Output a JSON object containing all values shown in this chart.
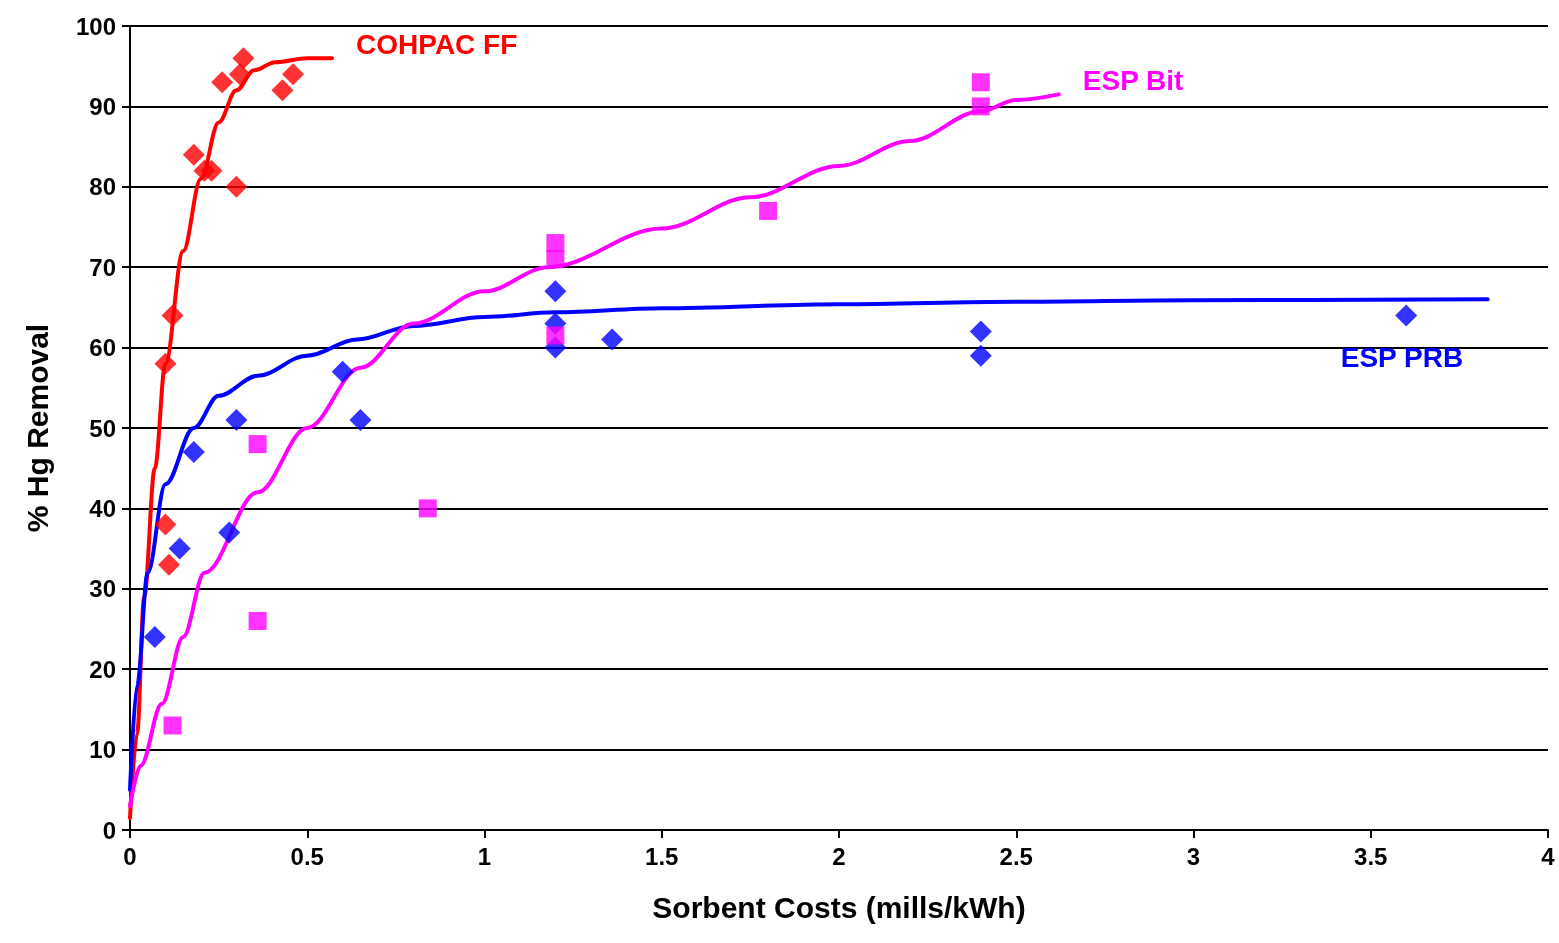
{
  "chart_data": {
    "type": "scatter",
    "xlabel": "Sorbent Costs (mills/kWh)",
    "ylabel": "% Hg Removal",
    "xlim": [
      0,
      4
    ],
    "xticks": [
      0,
      0.5,
      1,
      1.5,
      2,
      2.5,
      3,
      3.5,
      4
    ],
    "ylim": [
      0,
      100
    ],
    "yticks": [
      0,
      10,
      20,
      30,
      40,
      50,
      60,
      70,
      80,
      90,
      100
    ],
    "grid": "y",
    "legend": false,
    "series": [
      {
        "marker": "diamond",
        "color": "#ff0000",
        "x": [
          0.1,
          0.11,
          0.1,
          0.12,
          0.18,
          0.21,
          0.23,
          0.3,
          0.26,
          0.31,
          0.32,
          0.43,
          0.46
        ],
        "values": [
          38,
          33,
          58,
          64,
          84,
          82,
          82,
          80,
          93,
          94,
          96,
          92,
          94
        ]
      },
      {
        "marker": "diamond",
        "color": "#0000ff",
        "x": [
          0.07,
          0.14,
          0.18,
          0.3,
          0.28,
          0.6,
          0.65,
          1.2,
          1.2,
          1.2,
          1.36,
          2.4,
          2.4,
          3.6
        ],
        "values": [
          24,
          35,
          47,
          51,
          37,
          57,
          51,
          67,
          63,
          60,
          61,
          62,
          59,
          64
        ]
      },
      {
        "marker": "square",
        "color": "#ff00ff",
        "x": [
          0.12,
          0.36,
          0.36,
          0.84,
          1.2,
          1.2,
          1.2,
          1.8,
          2.4,
          2.4
        ],
        "values": [
          13,
          48,
          26,
          40,
          73,
          71,
          61.5,
          77,
          93,
          90
        ]
      },
      {
        "type": "line",
        "name": "COHPAC FF",
        "marker": "none",
        "line_style": "solid",
        "color": "#ff0000",
        "x": [
          0,
          0.02,
          0.04,
          0.07,
          0.1,
          0.15,
          0.2,
          0.25,
          0.3,
          0.35,
          0.41,
          0.5,
          0.57
        ],
        "values": [
          1.5,
          12,
          29,
          45,
          58,
          72,
          81,
          88,
          92,
          94.5,
          95.5,
          96,
          96
        ]
      },
      {
        "type": "line",
        "name": "ESP PRB",
        "marker": "none",
        "line_style": "solid",
        "color": "#0000ff",
        "x": [
          0,
          0.02,
          0.05,
          0.1,
          0.18,
          0.25,
          0.36,
          0.5,
          0.64,
          0.8,
          1,
          1.2,
          1.5,
          2,
          2.5,
          3,
          3.83
        ],
        "values": [
          5,
          18,
          32,
          43,
          50,
          54,
          56.5,
          59,
          61,
          62.7,
          63.8,
          64.4,
          64.9,
          65.4,
          65.7,
          65.9,
          66
        ]
      },
      {
        "type": "line",
        "name": "ESP Bit",
        "marker": "none",
        "line_style": "solid",
        "color": "#ff00ff",
        "x": [
          0,
          0.03,
          0.09,
          0.15,
          0.21,
          0.36,
          0.5,
          0.65,
          0.8,
          1,
          1.18,
          1.5,
          1.75,
          2,
          2.2,
          2.4,
          2.5,
          2.62
        ],
        "values": [
          3,
          8,
          15.7,
          24,
          32,
          42,
          50,
          57.5,
          63,
          67,
          70,
          74.8,
          78.7,
          82.6,
          85.7,
          89.4,
          90.8,
          91.5
        ]
      }
    ]
  }
}
